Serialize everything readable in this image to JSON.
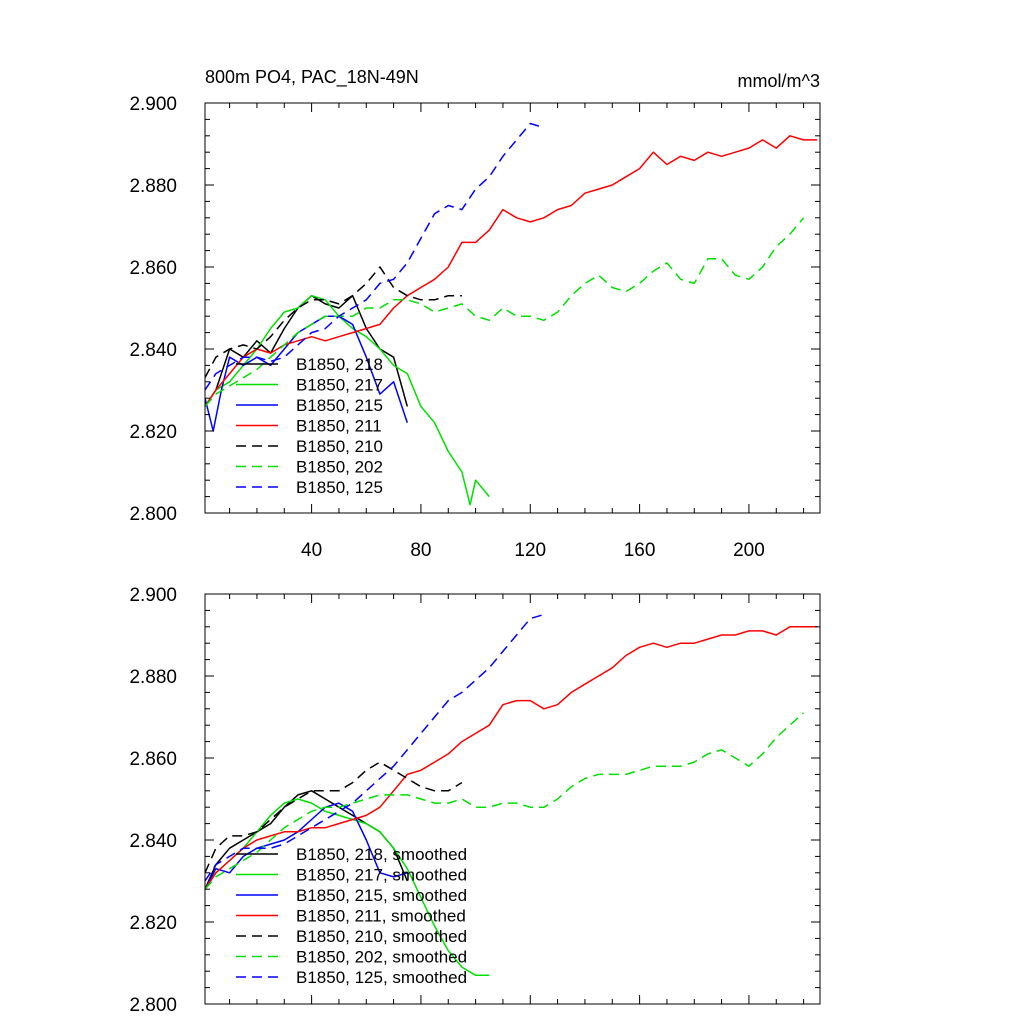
{
  "figure": {
    "title_left": "800m PO4, PAC_18N-49N",
    "title_right": "mmol/m^3"
  },
  "colors": {
    "black": "#000000",
    "green": "#00e000",
    "blue": "#0000ff",
    "red": "#ff0000"
  },
  "chart_data": [
    {
      "type": "line",
      "panel": "raw",
      "title": "800m PO4, PAC_18N-49N",
      "units": "mmol/m^3",
      "xlim": [
        1,
        226
      ],
      "ylim": [
        2.8,
        2.9
      ],
      "xticks": [
        40,
        80,
        120,
        160,
        200
      ],
      "yticks": [
        2.8,
        2.82,
        2.84,
        2.86,
        2.88,
        2.9
      ],
      "ytick_labels": [
        "2.800",
        "2.820",
        "2.840",
        "2.860",
        "2.880",
        "2.900"
      ],
      "grid": false,
      "legend_position": "bottom-left",
      "series": [
        {
          "name": "B1850, 218",
          "color": "black",
          "dash": "solid",
          "x": [
            1,
            5,
            10,
            15,
            20,
            25,
            30,
            35,
            40,
            45,
            50,
            55,
            60,
            65,
            70,
            75
          ],
          "y": [
            2.826,
            2.83,
            2.84,
            2.838,
            2.842,
            2.839,
            2.845,
            2.85,
            2.853,
            2.851,
            2.85,
            2.853,
            2.845,
            2.84,
            2.838,
            2.826
          ]
        },
        {
          "name": "B1850, 217",
          "color": "green",
          "dash": "solid",
          "x": [
            1,
            5,
            10,
            15,
            20,
            25,
            30,
            35,
            40,
            45,
            50,
            55,
            60,
            65,
            70,
            75,
            80,
            85,
            90,
            95,
            98,
            100,
            105
          ],
          "y": [
            2.826,
            2.83,
            2.832,
            2.836,
            2.84,
            2.845,
            2.849,
            2.85,
            2.853,
            2.852,
            2.848,
            2.845,
            2.843,
            2.84,
            2.836,
            2.834,
            2.826,
            2.822,
            2.815,
            2.81,
            2.802,
            2.808,
            2.804
          ]
        },
        {
          "name": "B1850, 215",
          "color": "blue",
          "dash": "solid",
          "x": [
            1,
            4,
            7,
            10,
            15,
            20,
            25,
            30,
            35,
            40,
            45,
            50,
            55,
            60,
            65,
            70,
            75
          ],
          "y": [
            2.828,
            2.82,
            2.83,
            2.838,
            2.836,
            2.838,
            2.836,
            2.84,
            2.844,
            2.846,
            2.848,
            2.848,
            2.846,
            2.838,
            2.829,
            2.832,
            2.822
          ]
        },
        {
          "name": "B1850, 211",
          "color": "red",
          "dash": "solid",
          "x": [
            1,
            5,
            10,
            15,
            20,
            25,
            30,
            35,
            40,
            45,
            50,
            55,
            60,
            65,
            70,
            75,
            80,
            85,
            90,
            95,
            100,
            105,
            110,
            115,
            120,
            125,
            130,
            135,
            140,
            145,
            150,
            155,
            160,
            165,
            170,
            175,
            180,
            185,
            190,
            195,
            200,
            205,
            210,
            215,
            220,
            225
          ],
          "y": [
            2.826,
            2.83,
            2.834,
            2.838,
            2.84,
            2.839,
            2.841,
            2.842,
            2.843,
            2.842,
            2.843,
            2.844,
            2.845,
            2.846,
            2.85,
            2.853,
            2.855,
            2.857,
            2.86,
            2.866,
            2.866,
            2.869,
            2.874,
            2.872,
            2.871,
            2.872,
            2.874,
            2.875,
            2.878,
            2.879,
            2.88,
            2.882,
            2.884,
            2.888,
            2.885,
            2.887,
            2.886,
            2.888,
            2.887,
            2.888,
            2.889,
            2.891,
            2.889,
            2.892,
            2.891,
            2.891
          ]
        },
        {
          "name": "B1850, 210",
          "color": "black",
          "dash": "dashed",
          "x": [
            1,
            5,
            10,
            15,
            20,
            25,
            30,
            35,
            40,
            45,
            50,
            55,
            60,
            65,
            70,
            75,
            80,
            85,
            90,
            95
          ],
          "y": [
            2.833,
            2.838,
            2.84,
            2.841,
            2.84,
            2.843,
            2.847,
            2.85,
            2.852,
            2.852,
            2.851,
            2.853,
            2.856,
            2.86,
            2.855,
            2.853,
            2.852,
            2.852,
            2.853,
            2.853
          ]
        },
        {
          "name": "B1850, 202",
          "color": "green",
          "dash": "dashed",
          "x": [
            1,
            5,
            10,
            15,
            20,
            25,
            30,
            35,
            40,
            45,
            50,
            55,
            60,
            65,
            70,
            75,
            80,
            85,
            90,
            95,
            100,
            105,
            110,
            115,
            120,
            125,
            130,
            135,
            140,
            145,
            150,
            155,
            160,
            165,
            170,
            175,
            180,
            185,
            190,
            195,
            200,
            205,
            210,
            215,
            220
          ],
          "y": [
            2.826,
            2.829,
            2.831,
            2.833,
            2.835,
            2.838,
            2.841,
            2.844,
            2.846,
            2.848,
            2.848,
            2.848,
            2.85,
            2.85,
            2.852,
            2.852,
            2.851,
            2.849,
            2.85,
            2.851,
            2.848,
            2.847,
            2.85,
            2.848,
            2.848,
            2.847,
            2.849,
            2.853,
            2.856,
            2.858,
            2.855,
            2.854,
            2.856,
            2.859,
            2.861,
            2.857,
            2.856,
            2.862,
            2.862,
            2.858,
            2.857,
            2.86,
            2.865,
            2.868,
            2.872
          ]
        },
        {
          "name": "B1850, 125",
          "color": "blue",
          "dash": "dashed",
          "x": [
            1,
            5,
            10,
            15,
            20,
            25,
            30,
            35,
            40,
            45,
            50,
            55,
            60,
            65,
            70,
            75,
            80,
            85,
            90,
            95,
            100,
            105,
            110,
            115,
            120,
            125
          ],
          "y": [
            2.83,
            2.834,
            2.836,
            2.838,
            2.838,
            2.837,
            2.838,
            2.841,
            2.844,
            2.845,
            2.848,
            2.85,
            2.852,
            2.856,
            2.857,
            2.861,
            2.867,
            2.873,
            2.875,
            2.874,
            2.879,
            2.882,
            2.887,
            2.891,
            2.895,
            2.894
          ]
        }
      ]
    },
    {
      "type": "line",
      "panel": "smoothed",
      "xlim": [
        1,
        226
      ],
      "ylim": [
        2.8,
        2.9
      ],
      "yticks": [
        2.8,
        2.82,
        2.84,
        2.86,
        2.88,
        2.9
      ],
      "ytick_labels": [
        "2.800",
        "2.820",
        "2.840",
        "2.860",
        "2.880",
        "2.900"
      ],
      "grid": false,
      "legend_position": "bottom-left",
      "series": [
        {
          "name": "B1850, 218, smoothed",
          "color": "black",
          "dash": "solid",
          "x": [
            1,
            5,
            10,
            15,
            20,
            25,
            30,
            35,
            40,
            45,
            50,
            55,
            60,
            65,
            70,
            75
          ],
          "y": [
            2.828,
            2.834,
            2.838,
            2.84,
            2.842,
            2.844,
            2.848,
            2.851,
            2.852,
            2.85,
            2.848,
            2.846,
            2.844,
            2.842,
            2.838,
            2.83
          ]
        },
        {
          "name": "B1850, 217, smoothed",
          "color": "green",
          "dash": "solid",
          "x": [
            1,
            5,
            10,
            15,
            20,
            25,
            30,
            35,
            40,
            45,
            50,
            55,
            60,
            65,
            70,
            75,
            80,
            85,
            90,
            95,
            100,
            105
          ],
          "y": [
            2.828,
            2.832,
            2.835,
            2.838,
            2.842,
            2.846,
            2.849,
            2.85,
            2.849,
            2.847,
            2.846,
            2.845,
            2.844,
            2.842,
            2.838,
            2.833,
            2.826,
            2.819,
            2.813,
            2.809,
            2.807,
            2.807
          ]
        },
        {
          "name": "B1850, 215, smoothed",
          "color": "blue",
          "dash": "solid",
          "x": [
            1,
            5,
            10,
            15,
            20,
            25,
            30,
            35,
            40,
            45,
            50,
            55,
            60,
            65,
            70,
            75
          ],
          "y": [
            2.828,
            2.833,
            2.832,
            2.836,
            2.838,
            2.839,
            2.84,
            2.842,
            2.845,
            2.848,
            2.849,
            2.847,
            2.84,
            2.832,
            2.831,
            2.832
          ]
        },
        {
          "name": "B1850, 211, smoothed",
          "color": "red",
          "dash": "solid",
          "x": [
            1,
            5,
            10,
            15,
            20,
            25,
            30,
            35,
            40,
            45,
            50,
            55,
            60,
            65,
            70,
            75,
            80,
            85,
            90,
            95,
            100,
            105,
            110,
            115,
            120,
            125,
            130,
            135,
            140,
            145,
            150,
            155,
            160,
            165,
            170,
            175,
            180,
            185,
            190,
            195,
            200,
            205,
            210,
            215,
            220,
            225
          ],
          "y": [
            2.828,
            2.832,
            2.835,
            2.838,
            2.84,
            2.841,
            2.842,
            2.842,
            2.843,
            2.843,
            2.844,
            2.845,
            2.846,
            2.848,
            2.852,
            2.856,
            2.857,
            2.859,
            2.861,
            2.864,
            2.866,
            2.868,
            2.873,
            2.874,
            2.874,
            2.872,
            2.873,
            2.876,
            2.878,
            2.88,
            2.882,
            2.885,
            2.887,
            2.888,
            2.887,
            2.888,
            2.888,
            2.889,
            2.89,
            2.89,
            2.891,
            2.891,
            2.89,
            2.892,
            2.892,
            2.892
          ]
        },
        {
          "name": "B1850, 210, smoothed",
          "color": "black",
          "dash": "dashed",
          "x": [
            1,
            5,
            10,
            15,
            20,
            25,
            30,
            35,
            40,
            45,
            50,
            55,
            60,
            65,
            70,
            75,
            80,
            85,
            90,
            95
          ],
          "y": [
            2.832,
            2.838,
            2.841,
            2.841,
            2.842,
            2.845,
            2.848,
            2.85,
            2.852,
            2.852,
            2.852,
            2.854,
            2.857,
            2.859,
            2.857,
            2.855,
            2.853,
            2.852,
            2.852,
            2.854
          ]
        },
        {
          "name": "B1850, 202, smoothed",
          "color": "green",
          "dash": "dashed",
          "x": [
            1,
            5,
            10,
            15,
            20,
            25,
            30,
            35,
            40,
            45,
            50,
            55,
            60,
            65,
            70,
            75,
            80,
            85,
            90,
            95,
            100,
            105,
            110,
            115,
            120,
            125,
            130,
            135,
            140,
            145,
            150,
            155,
            160,
            165,
            170,
            175,
            180,
            185,
            190,
            195,
            200,
            205,
            210,
            215,
            220
          ],
          "y": [
            2.828,
            2.831,
            2.833,
            2.835,
            2.837,
            2.84,
            2.843,
            2.845,
            2.847,
            2.848,
            2.848,
            2.849,
            2.85,
            2.851,
            2.851,
            2.851,
            2.85,
            2.849,
            2.849,
            2.85,
            2.848,
            2.848,
            2.849,
            2.849,
            2.848,
            2.848,
            2.85,
            2.853,
            2.855,
            2.856,
            2.856,
            2.856,
            2.857,
            2.858,
            2.858,
            2.858,
            2.859,
            2.861,
            2.862,
            2.86,
            2.858,
            2.861,
            2.865,
            2.868,
            2.871
          ]
        },
        {
          "name": "B1850, 125, smoothed",
          "color": "blue",
          "dash": "dashed",
          "x": [
            1,
            5,
            10,
            15,
            20,
            25,
            30,
            35,
            40,
            45,
            50,
            55,
            60,
            65,
            70,
            75,
            80,
            85,
            90,
            95,
            100,
            105,
            110,
            115,
            120,
            125
          ],
          "y": [
            2.83,
            2.834,
            2.836,
            2.838,
            2.838,
            2.838,
            2.839,
            2.841,
            2.843,
            2.845,
            2.847,
            2.849,
            2.852,
            2.855,
            2.858,
            2.862,
            2.866,
            2.87,
            2.874,
            2.876,
            2.879,
            2.882,
            2.886,
            2.89,
            2.894,
            2.895
          ]
        }
      ]
    }
  ]
}
